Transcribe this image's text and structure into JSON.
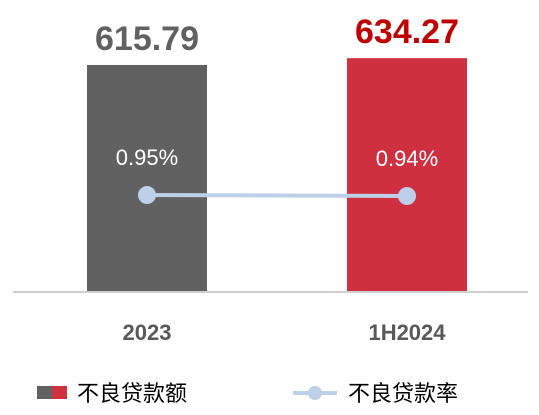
{
  "chart_data": {
    "type": "bar",
    "categories": [
      "2023",
      "1H2024"
    ],
    "series": [
      {
        "name": "不良贷款额",
        "type": "bar",
        "colors": [
          "#616161",
          "#cf3040"
        ],
        "label_colors": [
          "#616161",
          "#c00000"
        ],
        "values": [
          615.79,
          634.27
        ]
      },
      {
        "name": "不良贷款率",
        "type": "line",
        "axis": "y2",
        "color": "#bdd0e8",
        "values": [
          0.95,
          0.94
        ],
        "value_labels": [
          "0.95%",
          "0.94%"
        ]
      }
    ],
    "ylim": [
      0,
      792
    ],
    "y2lim": [
      0,
      2.86
    ]
  }
}
